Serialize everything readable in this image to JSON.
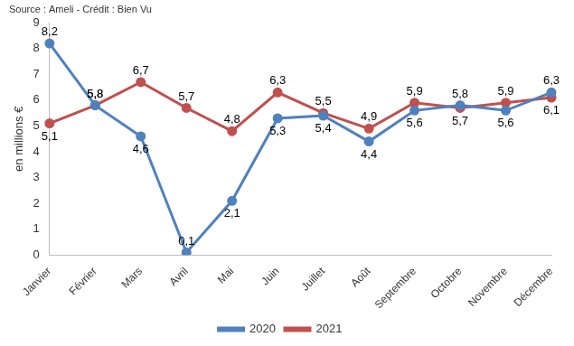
{
  "chart_data": {
    "type": "line",
    "source": "Source : Ameli - Crédit : Bien Vu",
    "y_label": "en millions €",
    "categories": [
      "Janvier",
      "Février",
      "Mars",
      "Avril",
      "Mai",
      "Juin",
      "Juillet",
      "Août",
      "Septembre",
      "Octobre",
      "Novembre",
      "Décembre"
    ],
    "series": [
      {
        "name": "2020",
        "color": "#4f81bd",
        "marker": "circle",
        "values": [
          8.2,
          5.8,
          4.6,
          0.1,
          2.1,
          5.3,
          5.4,
          4.4,
          5.6,
          5.8,
          5.6,
          6.3
        ],
        "value_labels": [
          "8,2",
          "5,8",
          "4,6",
          "0,1",
          "2,1",
          "5,3",
          "5,4",
          "4,4",
          "5,6",
          "5,8",
          "5,6",
          "6,3"
        ]
      },
      {
        "name": "2021",
        "color": "#c0504d",
        "marker": "circle",
        "values": [
          5.1,
          5.8,
          6.7,
          5.7,
          4.8,
          6.3,
          5.5,
          4.9,
          5.9,
          5.7,
          5.9,
          6.1
        ],
        "value_labels": [
          "5,1",
          "5,8",
          "6,7",
          "5,7",
          "4,8",
          "6,3",
          "5,5",
          "4,9",
          "5,9",
          "5,7",
          "5,9",
          "6,1"
        ]
      }
    ],
    "ylim": [
      0,
      9
    ],
    "yticks": [
      0,
      1,
      2,
      3,
      4,
      5,
      6,
      7,
      8,
      9
    ],
    "grid": false,
    "legend": "bottom",
    "data_labels": true
  }
}
